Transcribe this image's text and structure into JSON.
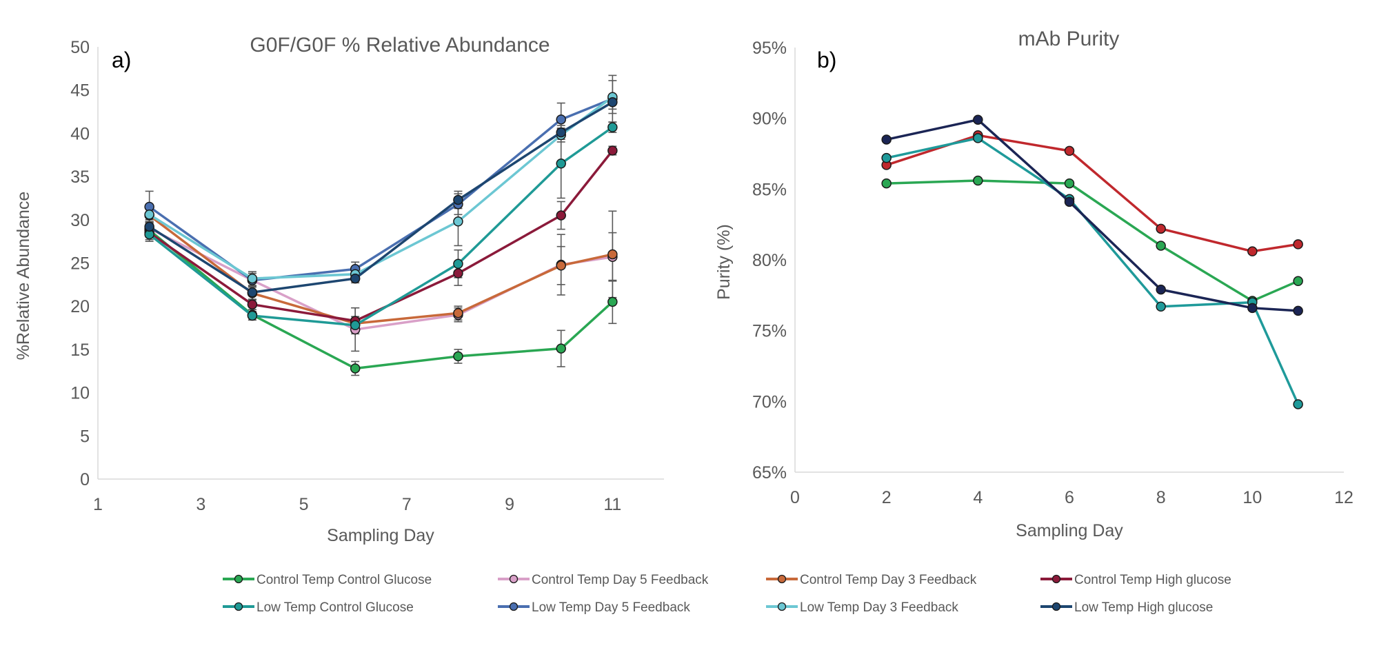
{
  "chart_data": [
    {
      "type": "line",
      "panel_label": "a)",
      "title": "G0F/G0F % Relative Abundance",
      "xlabel": "Sampling Day",
      "ylabel": "%Relative Abundance",
      "xlim": [
        1,
        12
      ],
      "ylim": [
        0,
        50
      ],
      "xticks": [
        1,
        3,
        5,
        7,
        9,
        11
      ],
      "yticks": [
        0,
        5,
        10,
        15,
        20,
        25,
        30,
        35,
        40,
        45,
        50
      ],
      "grid": false,
      "error_bars": true,
      "x": [
        2,
        4,
        6,
        8,
        10,
        11
      ],
      "series": [
        {
          "name": "Control Temp Control Glucose",
          "color": "#2aa753",
          "values": [
            28.8,
            19.0,
            12.8,
            14.2,
            15.1,
            20.5
          ],
          "errors": [
            0.8,
            0.6,
            0.8,
            0.8,
            2.1,
            2.5
          ]
        },
        {
          "name": "Control Temp Day 5 Feedback",
          "color": "#d9a0c8",
          "values": [
            29.0,
            23.0,
            17.3,
            19.0,
            24.8,
            25.7
          ],
          "errors": [
            0.8,
            0.8,
            2.5,
            0.8,
            3.5,
            2.8
          ]
        },
        {
          "name": "Control Temp Day 3 Feedback",
          "color": "#c8693a",
          "values": [
            30.5,
            21.5,
            18.0,
            19.2,
            24.7,
            26.0
          ],
          "errors": [
            0.8,
            0.8,
            0.8,
            0.8,
            2.2,
            5.0
          ]
        },
        {
          "name": "Control Temp High glucose",
          "color": "#8b1a3a",
          "values": [
            28.5,
            20.2,
            18.3,
            23.8,
            30.5,
            38.0
          ],
          "errors": [
            0.8,
            0.6,
            1.5,
            1.4,
            1.6,
            0.5
          ]
        },
        {
          "name": "Low Temp Control Glucose",
          "color": "#1f9a96",
          "values": [
            28.3,
            18.9,
            17.8,
            24.9,
            36.5,
            40.7
          ],
          "errors": [
            0.8,
            0.5,
            0.8,
            1.6,
            4.0,
            0.6
          ]
        },
        {
          "name": "Low Temp Day 5 Feedback",
          "color": "#4a6fb0",
          "values": [
            31.5,
            23.0,
            24.3,
            31.8,
            41.6,
            44.0
          ],
          "errors": [
            1.8,
            0.8,
            0.8,
            1.2,
            1.9,
            2.7
          ]
        },
        {
          "name": "Low Temp Day 3 Feedback",
          "color": "#6cc7d3",
          "values": [
            30.6,
            23.2,
            23.7,
            29.8,
            39.8,
            44.2
          ],
          "errors": [
            0.8,
            0.8,
            0.8,
            2.8,
            0.8,
            1.9
          ]
        },
        {
          "name": "Low Temp High glucose",
          "color": "#1d4670",
          "values": [
            29.2,
            21.6,
            23.2,
            32.3,
            40.1,
            43.6
          ],
          "errors": [
            0.8,
            0.8,
            0.5,
            1.0,
            0.8,
            0.8
          ]
        }
      ]
    },
    {
      "type": "line",
      "panel_label": "b)",
      "title": "mAb Purity",
      "xlabel": "Sampling Day",
      "ylabel": "Purity (%)",
      "xlim": [
        0,
        12
      ],
      "ylim": [
        65,
        95
      ],
      "xticks": [
        0,
        2,
        4,
        6,
        8,
        10,
        12
      ],
      "yticks": [
        "65%",
        "70%",
        "75%",
        "80%",
        "85%",
        "90%",
        "95%"
      ],
      "grid": false,
      "x": [
        2,
        4,
        6,
        8,
        10,
        11
      ],
      "series": [
        {
          "name": "Control Temp Control Glucose",
          "color": "#2aa753",
          "values": [
            85.4,
            85.6,
            85.4,
            81.0,
            77.1,
            78.5
          ]
        },
        {
          "name": "Control Temp High glucose",
          "color": "#c0282d",
          "values": [
            86.7,
            88.8,
            87.7,
            82.2,
            80.6,
            81.1
          ]
        },
        {
          "name": "Low Temp Control Glucose",
          "color": "#1f9a9a",
          "values": [
            87.2,
            88.6,
            84.3,
            76.7,
            77.0,
            69.8
          ]
        },
        {
          "name": "Low Temp High glucose",
          "color": "#1b2555",
          "values": [
            88.5,
            89.9,
            84.1,
            77.9,
            76.6,
            76.4
          ]
        }
      ]
    }
  ],
  "legend": {
    "placement": "bottom",
    "items": [
      {
        "label": "Control Temp Control Glucose",
        "color": "#2aa753"
      },
      {
        "label": "Control Temp Day 5 Feedback",
        "color": "#d9a0c8"
      },
      {
        "label": "Control Temp Day 3 Feedback",
        "color": "#c8693a"
      },
      {
        "label": "Control Temp High glucose",
        "color": "#8b1a3a"
      },
      {
        "label": "Low Temp Control Glucose",
        "color": "#1f9a96"
      },
      {
        "label": "Low Temp Day 5 Feedback",
        "color": "#4a6fb0"
      },
      {
        "label": "Low Temp Day 3 Feedback",
        "color": "#6cc7d3"
      },
      {
        "label": "Low Temp High glucose",
        "color": "#1d4670"
      }
    ]
  }
}
